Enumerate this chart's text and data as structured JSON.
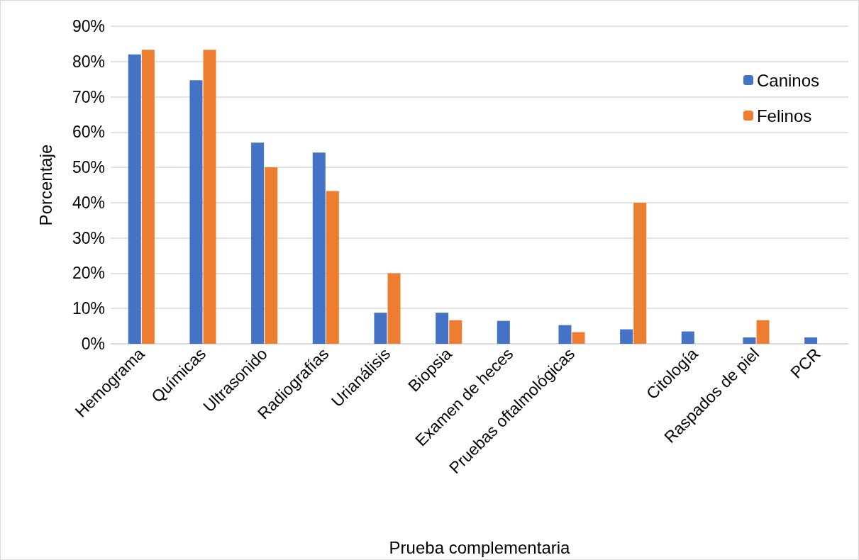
{
  "chart_data": {
    "type": "bar",
    "xlabel": "Prueba complementaria",
    "ylabel": "Porcentaje",
    "categories": [
      "Hemograma",
      "Químicas",
      "Ultrasonido",
      "Radiografías",
      "Urianálisis",
      "Biopsia",
      "Examen de heces",
      "Pruebas oftalmológicas",
      null,
      "Citología",
      "Raspados de piel",
      "PCR"
    ],
    "series": [
      {
        "name": "Caninos",
        "color": "#4472c4",
        "values": [
          82,
          74.7,
          57,
          54.2,
          8.8,
          8.8,
          6.5,
          5.3,
          4.1,
          3.5,
          1.8,
          1.8
        ]
      },
      {
        "name": "Felinos",
        "color": "#ed7d31",
        "values": [
          83.3,
          83.3,
          50,
          43.3,
          20,
          6.7,
          null,
          3.3,
          40,
          null,
          6.7,
          null
        ]
      }
    ],
    "ylim": [
      0,
      90
    ],
    "yticks": [
      {
        "value": 0,
        "label": "0%"
      },
      {
        "value": 10,
        "label": "10%"
      },
      {
        "value": 20,
        "label": "20%"
      },
      {
        "value": 30,
        "label": "30%"
      },
      {
        "value": 40,
        "label": "40%"
      },
      {
        "value": 50,
        "label": "50%"
      },
      {
        "value": 60,
        "label": "60%"
      },
      {
        "value": 70,
        "label": "70%"
      },
      {
        "value": 80,
        "label": "80%"
      },
      {
        "value": 90,
        "label": "90%"
      }
    ],
    "grid": "y",
    "legend": "top right"
  }
}
